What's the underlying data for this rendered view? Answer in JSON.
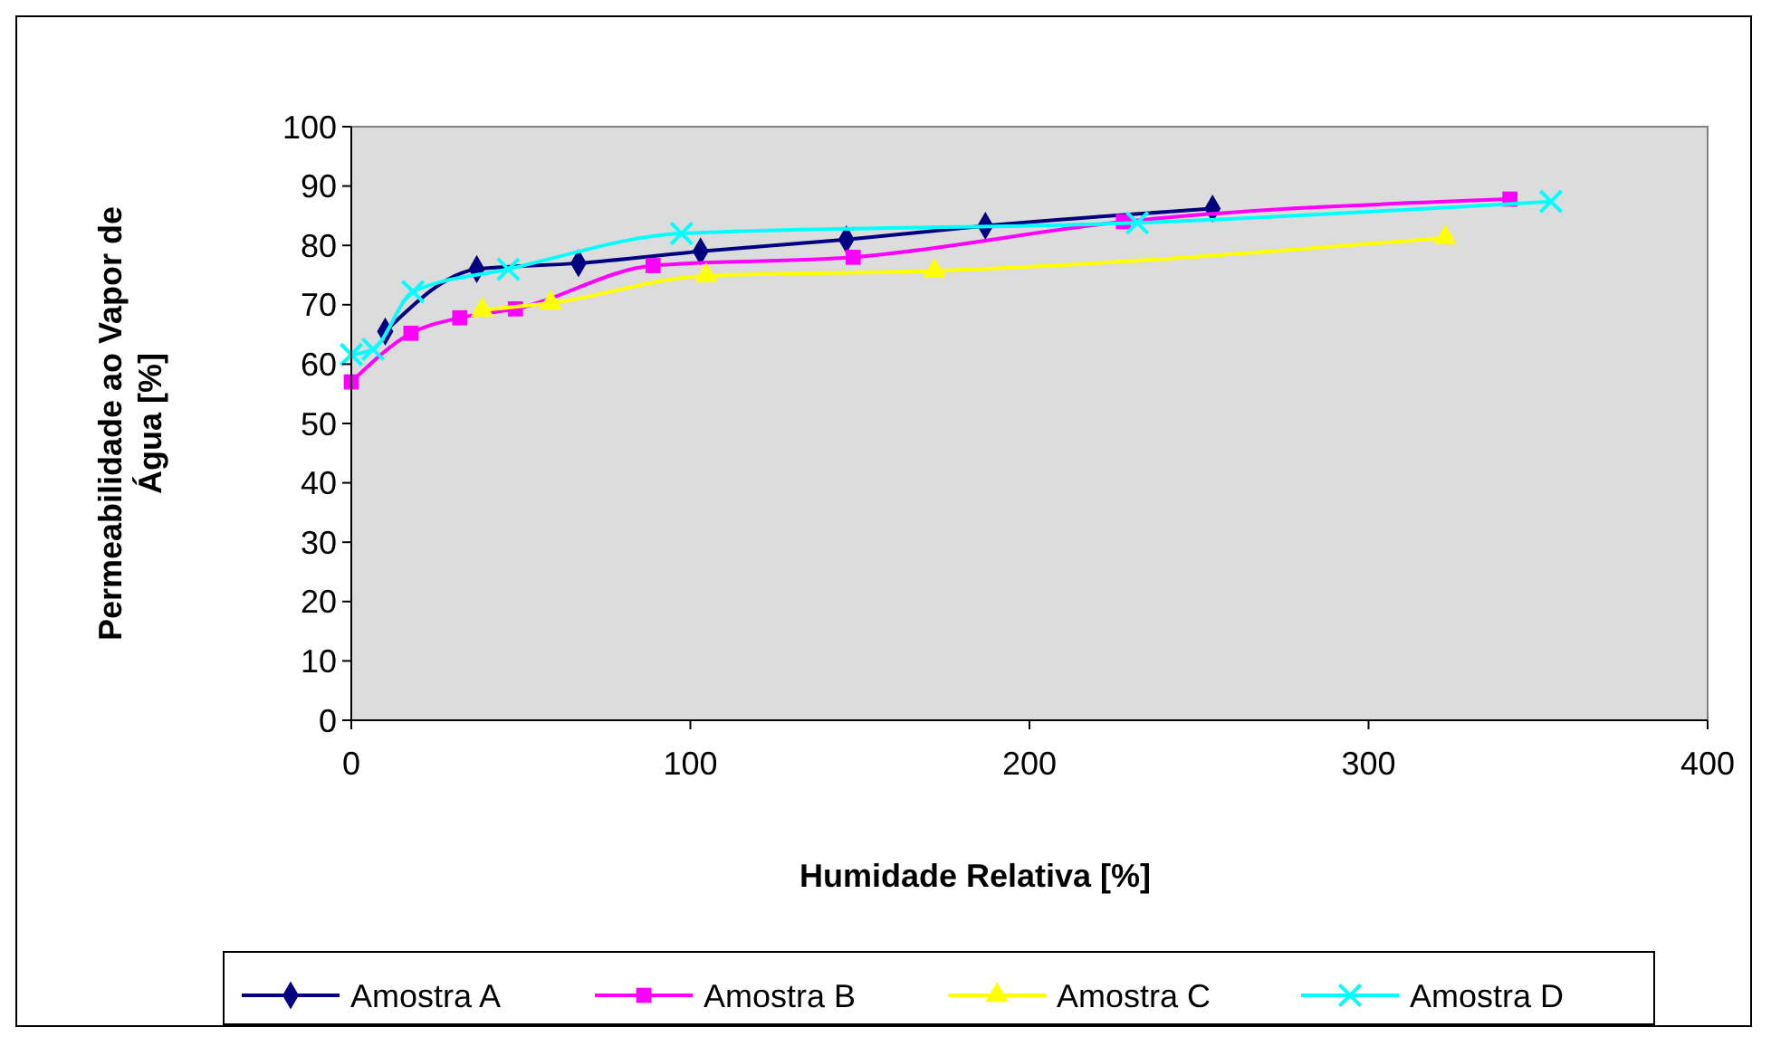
{
  "chart_data": {
    "type": "line",
    "xlabel": "Humidade Relativa [%]",
    "ylabel": "Permeabilidade ao Vapor de Água [%]",
    "xlim": [
      0,
      400
    ],
    "xticks": [
      0,
      100,
      200,
      300,
      400
    ],
    "ylim": [
      0,
      100
    ],
    "yticks": [
      0,
      10,
      20,
      30,
      40,
      50,
      60,
      70,
      80,
      90,
      100
    ],
    "grid": false,
    "legend": "bottom",
    "line_style": "solid",
    "series": [
      {
        "name": "Amostra A",
        "color": "#000080",
        "marker": "diamond",
        "x": [
          10,
          37,
          67,
          103,
          146,
          187,
          254
        ],
        "values": [
          65.5,
          76,
          77,
          79,
          81,
          83.3,
          86.2
        ]
      },
      {
        "name": "Amostra B",
        "color": "#ff00ff",
        "marker": "square",
        "x": [
          0,
          17.6,
          32,
          48.4,
          89,
          148,
          227.7,
          341.7
        ],
        "values": [
          57,
          65.2,
          67.8,
          69.3,
          76.6,
          78,
          84,
          87.8
        ]
      },
      {
        "name": "Amostra C",
        "color": "#ffff00",
        "marker": "triangle",
        "x": [
          38.6,
          58.8,
          104.7,
          172,
          322.6
        ],
        "values": [
          69.1,
          70.3,
          74.9,
          75.7,
          81.3
        ]
      },
      {
        "name": "Amostra D",
        "color": "#00ffff",
        "marker": "cross",
        "x": [
          0,
          6.4,
          18.2,
          46.3,
          97.4,
          231.8,
          353.8
        ],
        "values": [
          61.6,
          62.5,
          72.2,
          76,
          82,
          83.8,
          87.4
        ]
      }
    ]
  }
}
